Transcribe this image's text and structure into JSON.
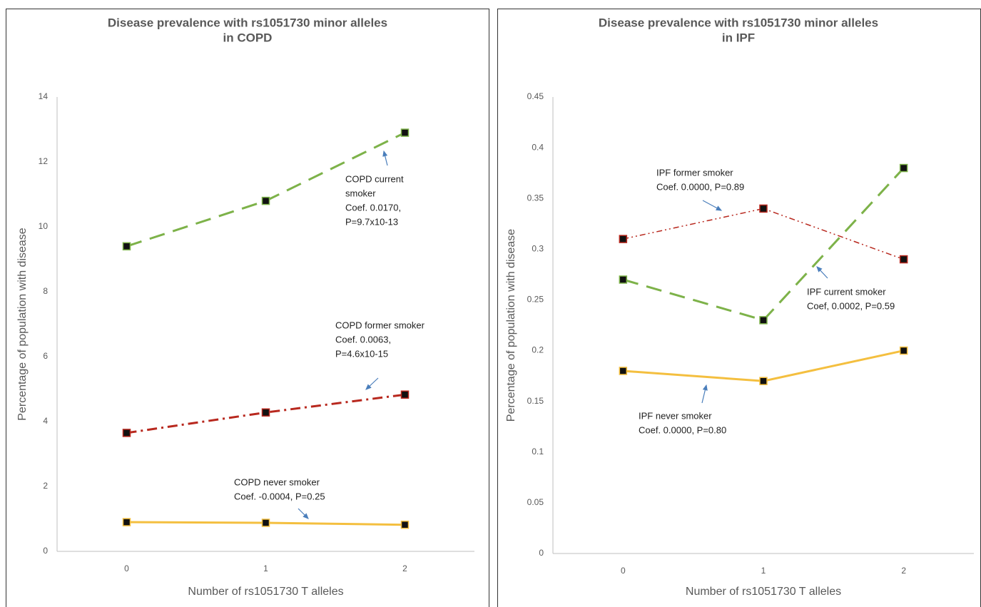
{
  "chart_data": [
    {
      "type": "line",
      "title": [
        "Disease prevalence with rs1051730 minor alleles",
        "in COPD"
      ],
      "x_label": "Number of rs1051730 T alleles",
      "y_label": "Percentage of population with disease",
      "categories": [
        "0",
        "1",
        "2"
      ],
      "ylim": [
        0,
        14
      ],
      "yticks": [
        0,
        2,
        4,
        6,
        8,
        10,
        12,
        14
      ],
      "grid": false,
      "series": [
        {
          "color": "#7db249",
          "style": "dashed",
          "values": [
            9.4,
            10.8,
            12.9
          ]
        },
        {
          "color": "#b8281e",
          "style": "dash-dot",
          "values": [
            3.65,
            4.28,
            4.83
          ]
        },
        {
          "color": "#f4bf3f",
          "style": "solid",
          "values": [
            0.9,
            0.88,
            0.82
          ]
        }
      ],
      "annotations": [
        {
          "lines": [
            "COPD current",
            "smoker",
            "Coef. 0.0170,",
            "P=9.7x10-13"
          ]
        },
        {
          "lines": [
            "COPD former smoker",
            "Coef. 0.0063,",
            "P=4.6x10-15"
          ]
        },
        {
          "lines": [
            "COPD never smoker",
            "Coef. -0.0004, P=0.25"
          ]
        }
      ]
    },
    {
      "type": "line",
      "title": [
        "Disease prevalence with rs1051730 minor alleles",
        "in IPF"
      ],
      "x_label": "Number of rs1051730 T alleles",
      "y_label": "Percentage of population with disease",
      "categories": [
        "0",
        "1",
        "2"
      ],
      "ylim": [
        0,
        0.45
      ],
      "yticks": [
        0,
        0.05,
        0.1,
        0.15,
        0.2,
        0.25,
        0.3,
        0.35,
        0.4,
        0.45
      ],
      "grid": false,
      "series": [
        {
          "color": "#b8281e",
          "style": "dash-dot-dot",
          "values": [
            0.31,
            0.34,
            0.29
          ]
        },
        {
          "color": "#7db249",
          "style": "dashed",
          "values": [
            0.27,
            0.23,
            0.38
          ]
        },
        {
          "color": "#f4bf3f",
          "style": "solid",
          "values": [
            0.18,
            0.17,
            0.2
          ]
        }
      ],
      "annotations": [
        {
          "lines": [
            "IPF former smoker",
            "Coef. 0.0000, P=0.89"
          ]
        },
        {
          "lines": [
            "IPF current smoker",
            "Coef, 0.0002, P=0.59"
          ]
        },
        {
          "lines": [
            "IPF never smoker",
            "Coef. 0.0000, P=0.80"
          ]
        }
      ]
    }
  ]
}
